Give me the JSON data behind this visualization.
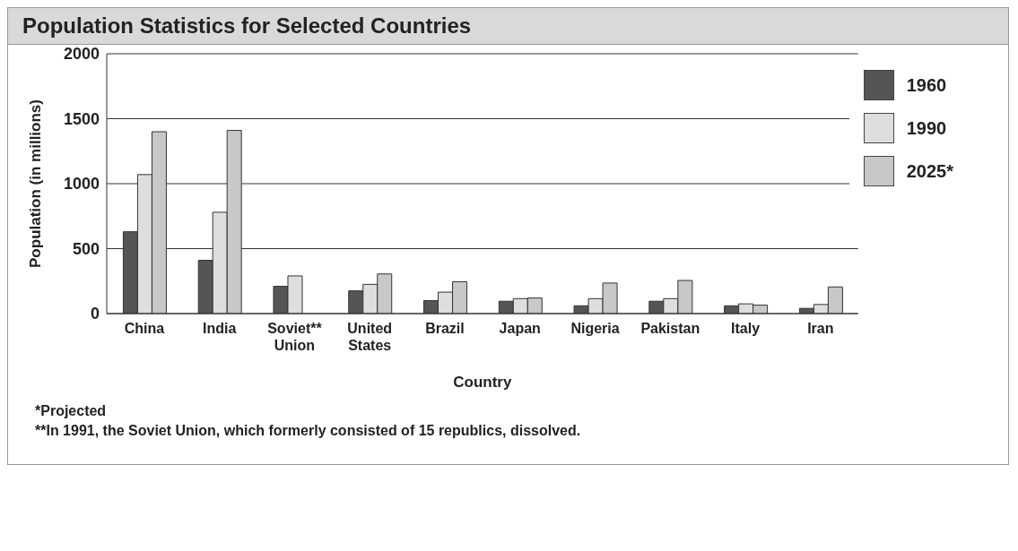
{
  "chart_data": {
    "type": "bar",
    "title": "Population Statistics for Selected Countries",
    "xlabel": "Country",
    "ylabel": "Population (in millions)",
    "categories": [
      "China",
      "India",
      "Soviet**\nUnion",
      "United\nStates",
      "Brazil",
      "Japan",
      "Nigeria",
      "Pakistan",
      "Italy",
      "Iran"
    ],
    "series": [
      {
        "name": "1960",
        "color": "#555555",
        "values": [
          630,
          410,
          210,
          175,
          100,
          95,
          60,
          95,
          60,
          40
        ]
      },
      {
        "name": "1990",
        "color": "#dedede",
        "values": [
          1070,
          780,
          290,
          225,
          165,
          115,
          115,
          115,
          75,
          70
        ]
      },
      {
        "name": "2025*",
        "color": "#c8c8c8",
        "values": [
          1400,
          1410,
          null,
          305,
          245,
          120,
          235,
          255,
          65,
          205
        ]
      }
    ],
    "ylim": [
      0,
      2000
    ],
    "yticks": [
      0,
      500,
      1000,
      1500,
      2000
    ],
    "grid": "y",
    "legend": "top right",
    "annotations": [
      "*Projected",
      "**In 1991, the Soviet Union, which formerly consisted of 15 republics, dissolved."
    ]
  }
}
